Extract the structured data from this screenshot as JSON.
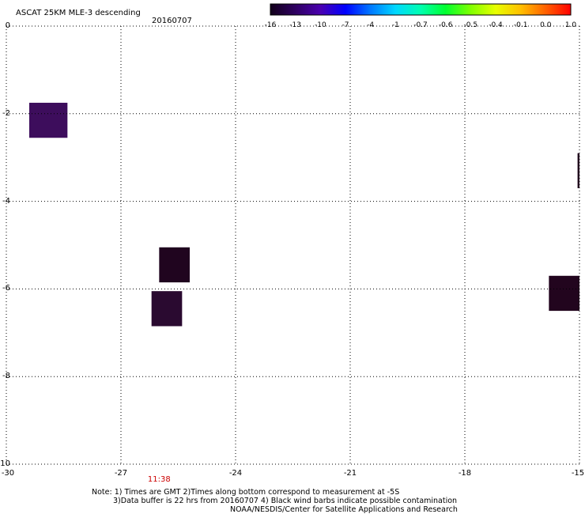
{
  "header": {
    "title": "ASCAT 25KM MLE-3 descending",
    "date": "20160707"
  },
  "colorbar": {
    "labels": [
      "-16",
      "-13",
      "-10",
      "-7",
      "-4",
      "-1",
      "-0.7",
      "-0.6",
      "-0.5",
      "-0.4",
      "-0.1",
      "0.0",
      "1.0"
    ],
    "colors": [
      "#12001a",
      "#2e0060",
      "#4a00b0",
      "#0000ff",
      "#0078ff",
      "#00d8ff",
      "#00ffb0",
      "#00ff30",
      "#80ff00",
      "#e8ff00",
      "#ffc000",
      "#ff6000",
      "#ff0000"
    ]
  },
  "map": {
    "lon_range": [
      -30,
      -15
    ],
    "lat_range": [
      -10,
      0
    ],
    "x_ticks": [
      "-30",
      "-27",
      "-24",
      "-21",
      "-18",
      "-15"
    ],
    "y_ticks": [
      "0",
      "-2",
      "-4",
      "-6",
      "-8",
      "-10"
    ],
    "grid": "dotted",
    "cells": [
      {
        "lon0": -29.4,
        "lon1": -28.4,
        "lat0": -2.55,
        "lat1": -1.75,
        "color": "#3d0d5c"
      },
      {
        "lon0": -26.0,
        "lon1": -25.2,
        "lat0": -5.85,
        "lat1": -5.05,
        "color": "#20051f"
      },
      {
        "lon0": -26.2,
        "lon1": -25.4,
        "lat0": -6.85,
        "lat1": -6.05,
        "color": "#2a0a30"
      },
      {
        "lon0": -15.8,
        "lon1": -15.0,
        "lat0": -6.5,
        "lat1": -5.7,
        "color": "#22051e"
      },
      {
        "lon0": -15.05,
        "lon1": -15.0,
        "lat0": -3.7,
        "lat1": -2.9,
        "color": "#22051e"
      }
    ],
    "time_label": "11:38",
    "time_label_lon": -26.0
  },
  "notes": {
    "line1": "Note: 1) Times are GMT 2)Times along bottom correspond to measurement at -5S",
    "line2": "3)Data buffer is 22 hrs from 20160707 4) Black wind barbs indicate possible contamination",
    "line3": "NOAA/NESDIS/Center for Satellite Applications and Research"
  }
}
